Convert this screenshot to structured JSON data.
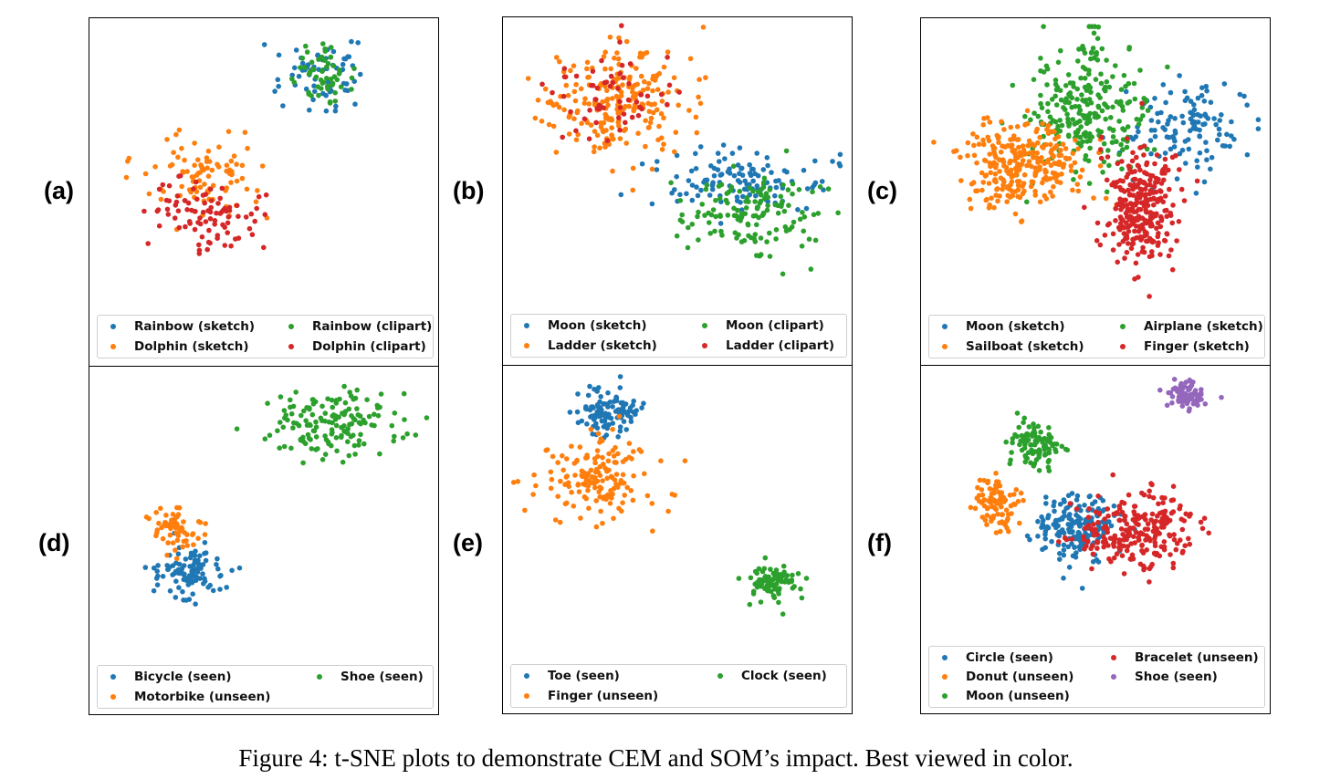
{
  "caption": "Figure 4: t-SNE plots to demonstrate CEM and SOM’s impact. Best viewed in color.",
  "colors": {
    "blue": "#1f77b4",
    "orange": "#ff7f0e",
    "green": "#2ca02c",
    "red": "#d62728",
    "purple": "#9467bd"
  },
  "chart_data": [
    {
      "id": "a",
      "label": "(a)",
      "type": "scatter",
      "xlim": [
        0,
        100
      ],
      "ylim": [
        0,
        100
      ],
      "legend_position": "bottom",
      "series": [
        {
          "name": "Rainbow (sketch)",
          "color": "#1f77b4",
          "cluster": {
            "cx": 66,
            "cy": 82,
            "sx": 7.0,
            "sy": 5.5,
            "n": 65
          }
        },
        {
          "name": "Rainbow (clipart)",
          "color": "#2ca02c",
          "cluster": {
            "cx": 68,
            "cy": 82,
            "sx": 4.5,
            "sy": 4.5,
            "n": 55
          }
        },
        {
          "name": "Dolphin (sketch)",
          "color": "#ff7f0e",
          "cluster": {
            "cx": 32,
            "cy": 46,
            "sx": 9.0,
            "sy": 7.0,
            "n": 95
          }
        },
        {
          "name": "Dolphin (clipart)",
          "color": "#d62728",
          "cluster": {
            "cx": 33,
            "cy": 33,
            "sx": 8.0,
            "sy": 6.0,
            "n": 90
          }
        }
      ]
    },
    {
      "id": "b",
      "label": "(b)",
      "type": "scatter",
      "xlim": [
        0,
        100
      ],
      "ylim": [
        0,
        100
      ],
      "legend_position": "bottom",
      "series": [
        {
          "name": "Moon (sketch)",
          "color": "#1f77b4",
          "cluster": {
            "cx": 70,
            "cy": 44,
            "sx": 12.0,
            "sy": 6.0,
            "n": 120
          }
        },
        {
          "name": "Moon (clipart)",
          "color": "#2ca02c",
          "cluster": {
            "cx": 72,
            "cy": 33,
            "sx": 10.0,
            "sy": 7.0,
            "n": 140
          }
        },
        {
          "name": "Ladder (sketch)",
          "color": "#ff7f0e",
          "cluster": {
            "cx": 33,
            "cy": 72,
            "sx": 11.0,
            "sy": 10.0,
            "n": 230
          }
        },
        {
          "name": "Ladder (clipart)",
          "color": "#d62728",
          "cluster": {
            "cx": 30,
            "cy": 74,
            "sx": 10.0,
            "sy": 9.0,
            "n": 60
          }
        }
      ]
    },
    {
      "id": "c",
      "label": "(c)",
      "type": "scatter",
      "xlim": [
        0,
        100
      ],
      "ylim": [
        0,
        100
      ],
      "legend_position": "bottom",
      "series": [
        {
          "name": "Moon (sketch)",
          "color": "#1f77b4",
          "cluster": {
            "cx": 78,
            "cy": 63,
            "sx": 9.0,
            "sy": 8.0,
            "n": 120
          }
        },
        {
          "name": "Airplane (sketch)",
          "color": "#2ca02c",
          "cluster": {
            "cx": 47,
            "cy": 70,
            "sx": 9.0,
            "sy": 12.0,
            "n": 260
          }
        },
        {
          "name": "Sailboat (sketch)",
          "color": "#ff7f0e",
          "cluster": {
            "cx": 28,
            "cy": 51,
            "sx": 9.0,
            "sy": 7.0,
            "n": 280
          }
        },
        {
          "name": "Finger (sketch)",
          "color": "#d62728",
          "cluster": {
            "cx": 64,
            "cy": 36,
            "sx": 5.5,
            "sy": 10.0,
            "n": 280
          }
        }
      ]
    },
    {
      "id": "d",
      "label": "(d)",
      "type": "scatter",
      "xlim": [
        0,
        100
      ],
      "ylim": [
        0,
        100
      ],
      "legend_position": "bottom",
      "series": [
        {
          "name": "Bicycle (seen)",
          "color": "#1f77b4",
          "cluster": {
            "cx": 28,
            "cy": 30,
            "sx": 5.5,
            "sy": 4.5,
            "n": 100
          }
        },
        {
          "name": "Shoe (seen)",
          "color": "#2ca02c",
          "cluster": {
            "cx": 70,
            "cy": 82,
            "sx": 9.5,
            "sy": 6.5,
            "n": 150
          }
        },
        {
          "name": "Motorbike (unseen)",
          "color": "#ff7f0e",
          "cluster": {
            "cx": 24,
            "cy": 43,
            "sx": 5.0,
            "sy": 4.0,
            "n": 60
          }
        }
      ]
    },
    {
      "id": "e",
      "label": "(e)",
      "type": "scatter",
      "xlim": [
        0,
        100
      ],
      "ylim": [
        0,
        100
      ],
      "legend_position": "bottom",
      "series": [
        {
          "name": "Toe (seen)",
          "color": "#1f77b4",
          "cluster": {
            "cx": 30,
            "cy": 86,
            "sx": 4.5,
            "sy": 4.0,
            "n": 110
          }
        },
        {
          "name": "Clock (seen)",
          "color": "#2ca02c",
          "cluster": {
            "cx": 79,
            "cy": 26,
            "sx": 4.0,
            "sy": 3.0,
            "n": 90
          }
        },
        {
          "name": "Finger (unseen)",
          "color": "#ff7f0e",
          "cluster": {
            "cx": 26,
            "cy": 63,
            "sx": 9.0,
            "sy": 7.0,
            "n": 160
          }
        }
      ]
    },
    {
      "id": "f",
      "label": "(f)",
      "type": "scatter",
      "xlim": [
        0,
        100
      ],
      "ylim": [
        0,
        100
      ],
      "legend_position": "bottom",
      "series": [
        {
          "name": "Circle (seen)",
          "color": "#1f77b4",
          "cluster": {
            "cx": 44,
            "cy": 42,
            "sx": 6.0,
            "sy": 6.5,
            "n": 180
          }
        },
        {
          "name": "Bracelet (unseen)",
          "color": "#d62728",
          "cluster": {
            "cx": 62,
            "cy": 40,
            "sx": 9.0,
            "sy": 7.0,
            "n": 240
          }
        },
        {
          "name": "Donut (unseen)",
          "color": "#ff7f0e",
          "cluster": {
            "cx": 21,
            "cy": 50,
            "sx": 3.5,
            "sy": 5.0,
            "n": 90
          }
        },
        {
          "name": "Shoe (seen)",
          "color": "#9467bd",
          "cluster": {
            "cx": 78,
            "cy": 91,
            "sx": 3.0,
            "sy": 2.5,
            "n": 90
          }
        },
        {
          "name": "Moon (unseen)",
          "color": "#2ca02c",
          "cluster": {
            "cx": 32,
            "cy": 72,
            "sx": 3.5,
            "sy": 5.0,
            "n": 100
          }
        }
      ]
    }
  ]
}
